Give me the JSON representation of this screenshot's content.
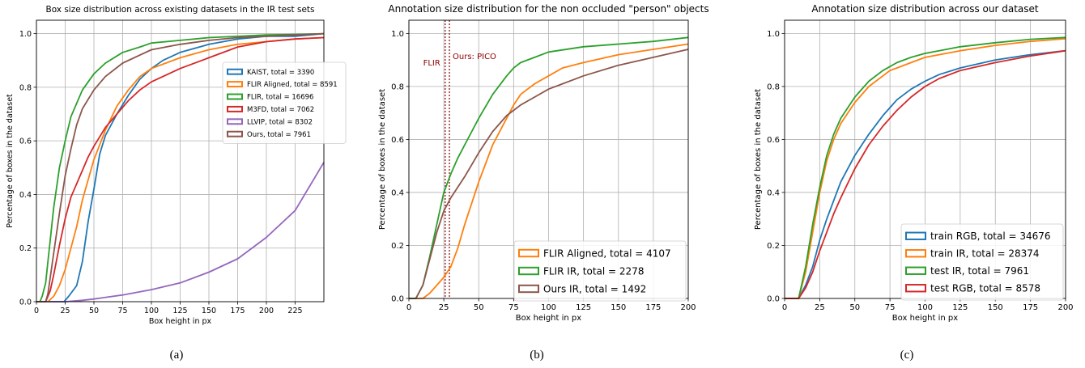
{
  "figure": {
    "subcaptions": [
      "(a)",
      "(b)",
      "(c)"
    ]
  },
  "colors": {
    "blue": "#1f77b4",
    "orange": "#ff7f0e",
    "green": "#2ca02c",
    "red": "#d62728",
    "purple": "#9467bd",
    "brown": "#8c564b",
    "marker": "#8b0000",
    "grid": "#b0b0b0"
  },
  "chart_data": [
    {
      "type": "line",
      "title": "Box size distribution across existing datasets in the IR test sets",
      "xlabel": "Box height in px",
      "ylabel": "Percentage of boxes in the dataset",
      "xlim": [
        0,
        250
      ],
      "ylim": [
        0,
        1.05
      ],
      "xticks": [
        0,
        25,
        50,
        75,
        100,
        125,
        150,
        175,
        200,
        225
      ],
      "yticks": [
        0.0,
        0.2,
        0.4,
        0.6,
        0.8,
        1.0
      ],
      "grid": true,
      "legend_position": "center-right",
      "series": [
        {
          "name": "KAIST, total = 3390",
          "color": "#1f77b4",
          "x": [
            0,
            24,
            28,
            35,
            40,
            45,
            50,
            55,
            60,
            70,
            80,
            90,
            100,
            110,
            125,
            150,
            175,
            200,
            225,
            250
          ],
          "y": [
            0,
            0,
            0.02,
            0.06,
            0.15,
            0.3,
            0.42,
            0.55,
            0.62,
            0.7,
            0.77,
            0.83,
            0.87,
            0.9,
            0.93,
            0.96,
            0.98,
            0.99,
            0.99,
            1.0
          ]
        },
        {
          "name": "FLIR Aligned, total = 8591",
          "color": "#ff7f0e",
          "x": [
            0,
            10,
            15,
            20,
            25,
            30,
            35,
            40,
            50,
            60,
            70,
            80,
            90,
            100,
            125,
            150,
            175,
            200,
            225,
            250
          ],
          "y": [
            0,
            0,
            0.02,
            0.06,
            0.12,
            0.2,
            0.28,
            0.38,
            0.53,
            0.64,
            0.73,
            0.79,
            0.84,
            0.87,
            0.91,
            0.94,
            0.96,
            0.97,
            0.98,
            0.985
          ]
        },
        {
          "name": "FLIR, total = 16696",
          "color": "#2ca02c",
          "x": [
            0,
            3,
            5,
            8,
            10,
            15,
            20,
            25,
            30,
            40,
            50,
            60,
            75,
            90,
            100,
            125,
            150,
            175,
            200,
            225,
            250
          ],
          "y": [
            0,
            0,
            0.02,
            0.07,
            0.15,
            0.35,
            0.5,
            0.6,
            0.69,
            0.79,
            0.85,
            0.89,
            0.93,
            0.95,
            0.965,
            0.975,
            0.985,
            0.99,
            0.995,
            0.997,
            1.0
          ]
        },
        {
          "name": "M3FD, total = 7062",
          "color": "#d62728",
          "x": [
            0,
            8,
            12,
            15,
            20,
            25,
            30,
            35,
            40,
            45,
            50,
            60,
            70,
            80,
            90,
            100,
            125,
            150,
            175,
            200,
            225,
            250
          ],
          "y": [
            0,
            0,
            0.04,
            0.1,
            0.21,
            0.31,
            0.39,
            0.44,
            0.49,
            0.54,
            0.58,
            0.65,
            0.7,
            0.75,
            0.79,
            0.82,
            0.87,
            0.91,
            0.95,
            0.97,
            0.98,
            0.985
          ]
        },
        {
          "name": "LLVIP, total = 8302",
          "color": "#9467bd",
          "x": [
            0,
            25,
            40,
            50,
            75,
            100,
            125,
            150,
            175,
            200,
            225,
            250
          ],
          "y": [
            0,
            0,
            0.005,
            0.01,
            0.025,
            0.045,
            0.07,
            0.11,
            0.16,
            0.24,
            0.34,
            0.52
          ]
        },
        {
          "name": "Ours, total = 7961",
          "color": "#8c564b",
          "x": [
            0,
            8,
            10,
            15,
            20,
            25,
            30,
            35,
            40,
            50,
            60,
            75,
            90,
            100,
            125,
            150,
            175,
            200,
            225,
            250
          ],
          "y": [
            0,
            0,
            0.03,
            0.18,
            0.33,
            0.47,
            0.57,
            0.66,
            0.72,
            0.79,
            0.84,
            0.89,
            0.92,
            0.94,
            0.96,
            0.975,
            0.985,
            0.99,
            0.995,
            1.0
          ]
        }
      ]
    },
    {
      "type": "line",
      "title": "Annotation size distribution for the non occluded \"person\" objects",
      "xlabel": "Box height in px",
      "ylabel": "Percentage of boxes in the dataset",
      "xlim": [
        0,
        200
      ],
      "ylim": [
        0,
        1.05
      ],
      "xticks": [
        0,
        25,
        50,
        75,
        100,
        125,
        150,
        175,
        200
      ],
      "yticks": [
        0.0,
        0.2,
        0.4,
        0.6,
        0.8,
        1.0
      ],
      "grid": true,
      "legend_position": "bottom-right",
      "vlines": [
        {
          "x": 26,
          "label": "FLIR"
        },
        {
          "x": 29,
          "label": "Ours: PICO"
        }
      ],
      "series": [
        {
          "name": "FLIR Aligned, total = 4107",
          "color": "#ff7f0e",
          "x": [
            0,
            10,
            15,
            20,
            25,
            30,
            35,
            40,
            50,
            60,
            70,
            75,
            80,
            90,
            100,
            110,
            125,
            150,
            175,
            200
          ],
          "y": [
            0,
            0,
            0.02,
            0.05,
            0.08,
            0.12,
            0.19,
            0.28,
            0.44,
            0.58,
            0.68,
            0.73,
            0.77,
            0.81,
            0.84,
            0.87,
            0.89,
            0.92,
            0.94,
            0.96
          ]
        },
        {
          "name": "FLIR IR, total = 2278",
          "color": "#2ca02c",
          "x": [
            0,
            5,
            10,
            15,
            20,
            25,
            30,
            35,
            40,
            50,
            60,
            70,
            75,
            80,
            90,
            100,
            125,
            150,
            175,
            200
          ],
          "y": [
            0,
            0,
            0.05,
            0.16,
            0.28,
            0.4,
            0.47,
            0.53,
            0.58,
            0.68,
            0.77,
            0.84,
            0.87,
            0.89,
            0.91,
            0.93,
            0.95,
            0.96,
            0.97,
            0.985
          ]
        },
        {
          "name": "Ours IR, total = 1492",
          "color": "#8c564b",
          "x": [
            0,
            5,
            10,
            15,
            20,
            25,
            30,
            35,
            40,
            50,
            60,
            70,
            75,
            80,
            90,
            100,
            110,
            125,
            150,
            175,
            200
          ],
          "y": [
            0,
            0,
            0.05,
            0.15,
            0.25,
            0.33,
            0.38,
            0.42,
            0.46,
            0.55,
            0.63,
            0.69,
            0.71,
            0.73,
            0.76,
            0.79,
            0.81,
            0.84,
            0.88,
            0.91,
            0.94
          ]
        }
      ]
    },
    {
      "type": "line",
      "title": "Annotation size distribution across our dataset",
      "xlabel": "Box height in px",
      "ylabel": "Percentage of boxes in the dataset",
      "xlim": [
        0,
        200
      ],
      "ylim": [
        0,
        1.05
      ],
      "xticks": [
        0,
        25,
        50,
        75,
        100,
        125,
        150,
        175,
        200
      ],
      "yticks": [
        0.0,
        0.2,
        0.4,
        0.6,
        0.8,
        1.0
      ],
      "grid": true,
      "legend_position": "bottom-right",
      "series": [
        {
          "name": "train RGB, total = 34676",
          "color": "#1f77b4",
          "x": [
            0,
            10,
            15,
            20,
            25,
            30,
            35,
            40,
            50,
            60,
            70,
            75,
            80,
            90,
            100,
            110,
            125,
            150,
            175,
            200
          ],
          "y": [
            0,
            0,
            0.05,
            0.12,
            0.22,
            0.3,
            0.37,
            0.44,
            0.54,
            0.62,
            0.69,
            0.72,
            0.75,
            0.79,
            0.82,
            0.845,
            0.87,
            0.9,
            0.92,
            0.935
          ]
        },
        {
          "name": "train IR, total = 28374",
          "color": "#ff7f0e",
          "x": [
            0,
            10,
            15,
            20,
            25,
            30,
            35,
            40,
            50,
            60,
            70,
            75,
            80,
            90,
            100,
            110,
            125,
            150,
            175,
            200
          ],
          "y": [
            0,
            0,
            0.1,
            0.25,
            0.4,
            0.52,
            0.6,
            0.66,
            0.74,
            0.8,
            0.84,
            0.86,
            0.87,
            0.89,
            0.91,
            0.92,
            0.935,
            0.955,
            0.97,
            0.98
          ]
        },
        {
          "name": "test IR, total = 7961",
          "color": "#2ca02c",
          "x": [
            0,
            10,
            15,
            20,
            25,
            30,
            35,
            40,
            50,
            60,
            70,
            75,
            80,
            90,
            100,
            110,
            125,
            150,
            175,
            200
          ],
          "y": [
            0,
            0,
            0.12,
            0.28,
            0.42,
            0.54,
            0.62,
            0.68,
            0.76,
            0.82,
            0.86,
            0.875,
            0.89,
            0.91,
            0.925,
            0.935,
            0.95,
            0.965,
            0.978,
            0.985
          ]
        },
        {
          "name": "test RGB, total = 8578",
          "color": "#d62728",
          "x": [
            0,
            10,
            15,
            20,
            25,
            30,
            35,
            40,
            50,
            60,
            70,
            75,
            80,
            90,
            100,
            110,
            125,
            150,
            175,
            200
          ],
          "y": [
            0,
            0,
            0.04,
            0.1,
            0.18,
            0.25,
            0.32,
            0.38,
            0.49,
            0.58,
            0.65,
            0.68,
            0.71,
            0.76,
            0.8,
            0.83,
            0.86,
            0.89,
            0.915,
            0.935
          ]
        }
      ]
    }
  ]
}
